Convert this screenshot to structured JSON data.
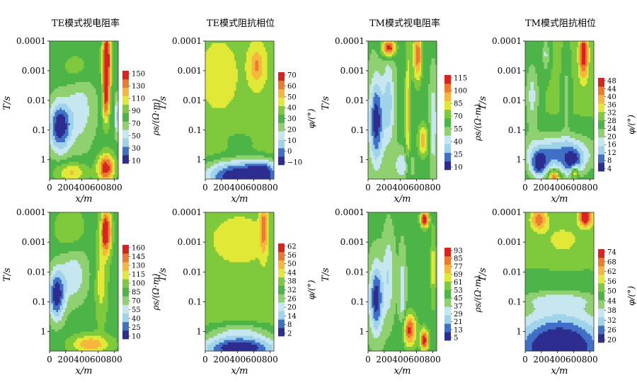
{
  "chart_data": [
    {
      "type": "heatmap",
      "title": "TE模式视电阻率",
      "xlabel": "x/m",
      "ylabel": "T/s",
      "xticks": [
        "0",
        "200",
        "400",
        "600",
        "800"
      ],
      "yticks": [
        "0.0001",
        "0.001",
        "0.01",
        "0.1",
        "1"
      ],
      "xlim": [
        0,
        850
      ],
      "colorbar_label": "ρs/(Ω·m)",
      "colorbar_ticks": [
        "150",
        "130",
        "110",
        "90",
        "70",
        "50",
        "30",
        "10"
      ],
      "zlim": [
        10,
        160
      ]
    },
    {
      "type": "heatmap",
      "title": "TE模式阻抗相位",
      "xlabel": "x/m",
      "ylabel": "T/s",
      "xticks": [
        "0",
        "200",
        "400",
        "600",
        "800"
      ],
      "yticks": [
        "0.0001",
        "0.001",
        "0.01",
        "0.1",
        "1"
      ],
      "xlim": [
        0,
        850
      ],
      "colorbar_label": "φ/(°)",
      "colorbar_ticks": [
        "70",
        "60",
        "50",
        "40",
        "30",
        "20",
        "10",
        "0",
        "−10"
      ],
      "zlim": [
        -15,
        75
      ]
    },
    {
      "type": "heatmap",
      "title": "TM模式视电阻率",
      "xlabel": "x/m",
      "ylabel": "T/s",
      "xticks": [
        "0",
        "200",
        "400",
        "600",
        "800"
      ],
      "yticks": [
        "0.0001",
        "0.001",
        "0.01",
        "0.1",
        "1"
      ],
      "xlim": [
        0,
        850
      ],
      "colorbar_label": "ρs/(Ω·m)",
      "colorbar_ticks": [
        "115",
        "100",
        "85",
        "70",
        "55",
        "40",
        "25",
        "10"
      ],
      "zlim": [
        5,
        120
      ]
    },
    {
      "type": "heatmap",
      "title": "TM模式阻抗相位",
      "xlabel": "x/m",
      "ylabel": "T/s",
      "xticks": [
        "0",
        "200",
        "400",
        "600",
        "800"
      ],
      "yticks": [
        "0.0001",
        "0.001",
        "0.01",
        "0.1",
        "1"
      ],
      "xlim": [
        0,
        850
      ],
      "colorbar_label": "φ/(°)",
      "colorbar_ticks": [
        "48",
        "44",
        "40",
        "36",
        "32",
        "28",
        "24",
        "20",
        "16",
        "12",
        "8",
        "4"
      ],
      "zlim": [
        2,
        50
      ]
    },
    {
      "type": "heatmap",
      "title": "",
      "xlabel": "x/m",
      "ylabel": "T/s",
      "xticks": [
        "0",
        "200",
        "400",
        "600",
        "800"
      ],
      "yticks": [
        "0.0001",
        "0.001",
        "0.01",
        "0.1",
        "1"
      ],
      "xlim": [
        0,
        850
      ],
      "colorbar_label": "ρs/(Ω·m)",
      "colorbar_ticks": [
        "160",
        "145",
        "130",
        "115",
        "100",
        "85",
        "70",
        "55",
        "40",
        "25",
        "10"
      ],
      "zlim": [
        5,
        165
      ]
    },
    {
      "type": "heatmap",
      "title": "",
      "xlabel": "x/m",
      "ylabel": "T/s",
      "xticks": [
        "0",
        "200",
        "400",
        "600",
        "800"
      ],
      "yticks": [
        "0.0001",
        "0.001",
        "0.01",
        "0.1",
        "1"
      ],
      "xlim": [
        0,
        850
      ],
      "colorbar_label": "φ/(°)",
      "colorbar_ticks": [
        "62",
        "56",
        "50",
        "44",
        "38",
        "32",
        "26",
        "20",
        "14",
        "8",
        "2"
      ],
      "zlim": [
        0,
        65
      ]
    },
    {
      "type": "heatmap",
      "title": "",
      "xlabel": "x/m",
      "ylabel": "T/s",
      "xticks": [
        "0",
        "200",
        "400",
        "600",
        "800"
      ],
      "yticks": [
        "0.0001",
        "0.001",
        "0.01",
        "0.1",
        "1"
      ],
      "xlim": [
        0,
        850
      ],
      "colorbar_label": "ρs/(Ω·m)",
      "colorbar_ticks": [
        "93",
        "85",
        "77",
        "69",
        "61",
        "53",
        "45",
        "37",
        "29",
        "21",
        "13",
        "5"
      ],
      "zlim": [
        3,
        95
      ]
    },
    {
      "type": "heatmap",
      "title": "",
      "xlabel": "x/m",
      "ylabel": "T/s",
      "xticks": [
        "0",
        "200",
        "400",
        "600",
        "800"
      ],
      "yticks": [
        "0.0001",
        "0.001",
        "0.01",
        "0.1",
        "1"
      ],
      "xlim": [
        0,
        850
      ],
      "colorbar_label": "φ/(°)",
      "colorbar_ticks": [
        "74",
        "68",
        "62",
        "56",
        "50",
        "44",
        "38",
        "32",
        "26",
        "20"
      ],
      "zlim": [
        18,
        76
      ]
    }
  ],
  "colormap": [
    "#2d2d8f",
    "#3f6fc6",
    "#9ed3ea",
    "#c6e7ef",
    "#8fd070",
    "#4db547",
    "#7fca3c",
    "#e2e836",
    "#f6b73c",
    "#ec7b2e",
    "#d9231f"
  ]
}
